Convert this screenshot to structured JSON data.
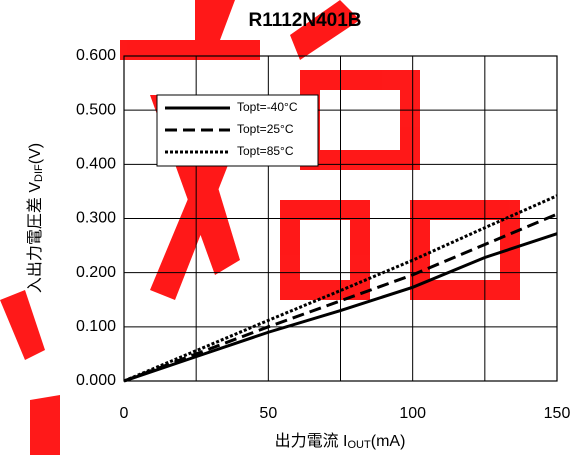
{
  "chart_data": {
    "type": "line",
    "title": "R1112N401B",
    "x_label": {
      "text": "出力電流 I",
      "sub": "OUT",
      "suffix": "(mA)"
    },
    "y_label": {
      "text": "入出力電圧差 V",
      "sub": "DIF",
      "suffix": "(V)"
    },
    "x": [
      0,
      25,
      50,
      75,
      100,
      125,
      150
    ],
    "series": [
      {
        "name": "Topt=-40°C",
        "color": "#000000",
        "dash": "solid",
        "values": [
          0,
          0.045,
          0.09,
          0.13,
          0.173,
          0.228,
          0.272
        ]
      },
      {
        "name": "Topt=25°C",
        "color": "#000000",
        "dash": "dashed",
        "values": [
          0,
          0.05,
          0.1,
          0.148,
          0.196,
          0.252,
          0.308
        ]
      },
      {
        "name": "Topt=85°C",
        "color": "#000000",
        "dash": "dotted",
        "values": [
          0,
          0.056,
          0.112,
          0.167,
          0.223,
          0.283,
          0.342
        ]
      }
    ],
    "xlim": [
      0,
      150
    ],
    "xticks": [
      0,
      50,
      100,
      150
    ],
    "x_minor_ticks": [
      25,
      75,
      125
    ],
    "ylim": [
      0,
      0.6
    ],
    "yticks": [
      {
        "value": 0,
        "label": "0.000"
      },
      {
        "value": 0.1,
        "label": "0.100"
      },
      {
        "value": 0.2,
        "label": "0.200"
      },
      {
        "value": 0.3,
        "label": "0.300"
      },
      {
        "value": 0.4,
        "label": "0.400"
      },
      {
        "value": 0.5,
        "label": "0.500"
      },
      {
        "value": 0.6,
        "label": "0.600"
      }
    ],
    "grid": true,
    "legend": "upper-left"
  }
}
